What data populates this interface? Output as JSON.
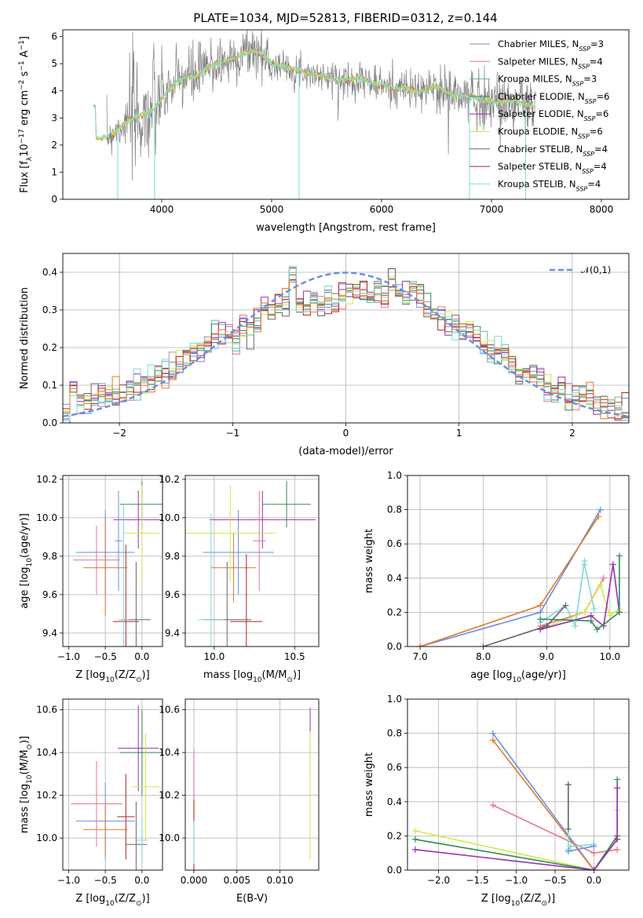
{
  "figure_title": "PLATE=1034, MJD=52813, FIBERID=0312, z=0.144",
  "models": [
    {
      "name": "Chabrier MILES",
      "nssp": "3",
      "color": "#6A8FE0"
    },
    {
      "name": "Salpeter MILES",
      "nssp": "4",
      "color": "#E8748A"
    },
    {
      "name": "Kroupa MILES",
      "nssp": "3",
      "color": "#5DBFA0"
    },
    {
      "name": "Chabrier ELODIE",
      "nssp": "6",
      "color": "#2E8B57"
    },
    {
      "name": "Salpeter ELODIE",
      "nssp": "6",
      "color": "#9A2FB0"
    },
    {
      "name": "Kroupa ELODIE",
      "nssp": "6",
      "color": "#D4E84A"
    },
    {
      "name": "Chabrier STELIB",
      "nssp": "4",
      "color": "#666666"
    },
    {
      "name": "Salpeter STELIB",
      "nssp": "4",
      "color": "#B22222"
    },
    {
      "name": "Kroupa STELIB",
      "nssp": "4",
      "color": "#7FD8D8"
    }
  ],
  "extra_colors": {
    "orange": "#E07A2A",
    "lime": "#C8E65A",
    "gray": "#808080",
    "normal": "#6A8FE0"
  },
  "chart_data": [
    {
      "id": "spectrum",
      "type": "line",
      "title": "PLATE=1034, MJD=52813, FIBERID=0312, z=0.144",
      "xlabel": "wavelength [Angstrom, rest frame]",
      "ylabel_parts": [
        "Flux [f",
        "λ",
        "10",
        "−17",
        " erg cm",
        "−2",
        " s",
        "−1",
        " A",
        "−1",
        "]"
      ],
      "xlim": [
        3100,
        8250
      ],
      "ylim": [
        0,
        6.25
      ],
      "xticks": [
        4000,
        5000,
        6000,
        7000,
        8000
      ],
      "yticks": [
        0,
        1,
        2,
        3,
        4,
        5,
        6
      ],
      "legend": "top-right",
      "continuum": {
        "x": [
          3400,
          3500,
          3600,
          3700,
          3800,
          3900,
          4000,
          4100,
          4200,
          4300,
          4400,
          4500,
          4600,
          4700,
          4800,
          4900,
          5000,
          5100,
          5200,
          5300,
          5400,
          5500,
          5600,
          5700,
          5800,
          5900,
          6000,
          6100,
          6200,
          6300,
          6400,
          6500,
          6600,
          6700,
          6800,
          6900,
          7000,
          7100,
          7200,
          7300,
          7400
        ],
        "y": [
          2.2,
          2.3,
          2.6,
          2.9,
          3.1,
          3.2,
          3.7,
          4.2,
          4.5,
          4.5,
          4.8,
          5.0,
          5.1,
          5.3,
          5.5,
          5.4,
          5.0,
          4.9,
          4.8,
          4.7,
          4.6,
          4.5,
          4.4,
          4.4,
          4.5,
          4.3,
          4.2,
          4.1,
          4.1,
          4.0,
          4.0,
          4.2,
          3.9,
          3.8,
          3.8,
          3.7,
          3.6,
          3.6,
          3.6,
          3.5,
          3.4
        ]
      },
      "noisy_data": {
        "x_range": [
          3500,
          7400
        ],
        "sigma": [
          [
            3500,
            3000,
            1.6
          ],
          [
            3700,
            3950,
            1.1
          ],
          [
            3950,
            4500,
            0.6
          ],
          [
            4500,
            5000,
            0.5
          ],
          [
            5000,
            5500,
            0.25
          ],
          [
            5500,
            6500,
            0.35
          ],
          [
            6500,
            7400,
            0.55
          ]
        ]
      },
      "dips": [
        {
          "x": 3600,
          "y": 0.0
        },
        {
          "x": 3935,
          "y": 0.0
        },
        {
          "x": 5250,
          "y": 0.0
        },
        {
          "x": 6800,
          "y": 0.0
        },
        {
          "x": 7310,
          "y": 0.0
        }
      ]
    },
    {
      "id": "residuals",
      "type": "histogram",
      "xlabel": "(data-model)/error",
      "ylabel": "Normed distribution",
      "xlim": [
        -2.5,
        2.5
      ],
      "ylim": [
        0,
        0.45
      ],
      "xticks": [
        -2,
        -1,
        0,
        1,
        2
      ],
      "yticks": [
        0.0,
        0.1,
        0.2,
        0.3,
        0.4
      ],
      "bin_width": 0.1,
      "legend_label": "𝒩(0,1)",
      "legend": "top-right",
      "base_hist": [
        0.03,
        0.09,
        0.06,
        0.06,
        0.065,
        0.07,
        0.07,
        0.07,
        0.085,
        0.09,
        0.095,
        0.1,
        0.11,
        0.13,
        0.145,
        0.14,
        0.16,
        0.17,
        0.18,
        0.2,
        0.21,
        0.23,
        0.25,
        0.24,
        0.22,
        0.26,
        0.25,
        0.27,
        0.3,
        0.3,
        0.32,
        0.31,
        0.4,
        0.32,
        0.31,
        0.33,
        0.32,
        0.33,
        0.31,
        0.34,
        0.34,
        0.36,
        0.35,
        0.33,
        0.35,
        0.34,
        0.38,
        0.34,
        0.34,
        0.36,
        0.33,
        0.31,
        0.29,
        0.29,
        0.27,
        0.26,
        0.24,
        0.25,
        0.22,
        0.21,
        0.2,
        0.19,
        0.17,
        0.15,
        0.14,
        0.14,
        0.13,
        0.12,
        0.09,
        0.08,
        0.09,
        0.08,
        0.07,
        0.065,
        0.07,
        0.06,
        0.05,
        0.04,
        0.035,
        0.03
      ]
    },
    {
      "id": "age-vs-Z",
      "type": "scatter",
      "xlabel_parts": [
        "Z [log",
        "10",
        "(Z/Z",
        "⊙",
        ")]"
      ],
      "ylabel_parts": [
        "age  [log",
        "10",
        "(age/yr)]"
      ],
      "xlim": [
        -1.08,
        0.28
      ],
      "ylim": [
        9.33,
        10.22
      ],
      "xticks": [
        -1.0,
        -0.5,
        0.0
      ],
      "yticks": [
        9.4,
        9.6,
        9.8,
        10.0,
        10.2
      ],
      "points": [
        {
          "x": -0.5,
          "y": 9.82,
          "xerr": 0.4,
          "yerr": 0.22,
          "c": "#6A8FE0"
        },
        {
          "x": -0.62,
          "y": 9.78,
          "xerr": 0.32,
          "yerr": 0.18,
          "c": "#E8748A"
        },
        {
          "x": -0.5,
          "y": 9.74,
          "xerr": 0.3,
          "yerr": 0.25,
          "c": "#E07A2A"
        },
        {
          "x": 0.0,
          "y": 10.07,
          "xerr": 0.3,
          "yerr": 0.12,
          "c": "#2E8B57"
        },
        {
          "x": -0.05,
          "y": 9.99,
          "xerr": 0.34,
          "yerr": 0.15,
          "c": "#9A2FB0"
        },
        {
          "x": 0.0,
          "y": 9.92,
          "xerr": 0.24,
          "yerr": 0.25,
          "c": "#D4E84A"
        },
        {
          "x": -0.22,
          "y": 9.46,
          "xerr": 0.18,
          "yerr": 0.4,
          "c": "#B22222"
        },
        {
          "x": -0.08,
          "y": 9.47,
          "xerr": 0.2,
          "yerr": 0.3,
          "c": "#666666"
        },
        {
          "x": -0.25,
          "y": 9.47,
          "xerr": 0.07,
          "yerr": 0.6,
          "c": "#7FD8D8"
        },
        {
          "x": -0.32,
          "y": 9.88,
          "xerr": 0.05,
          "yerr": 0.26,
          "c": "#6A8FE0"
        }
      ]
    },
    {
      "id": "age-vs-mass",
      "type": "scatter",
      "xlabel_parts": [
        "mass [log",
        "10",
        "(M/M",
        "⊙",
        ")]"
      ],
      "ylabel_parts": [],
      "xlim": [
        9.82,
        10.65
      ],
      "ylim": [
        9.33,
        10.22
      ],
      "xticks": [
        10.0,
        10.5
      ],
      "yticks": [
        9.4,
        9.6,
        9.8,
        10.0,
        10.2
      ],
      "points": [
        {
          "x": 10.15,
          "y": 9.82,
          "xerr": 0.22,
          "yerr": 0.22,
          "c": "#6A8FE0"
        },
        {
          "x": 10.12,
          "y": 9.74,
          "xerr": 0.14,
          "yerr": 0.18,
          "c": "#E07A2A"
        },
        {
          "x": 10.45,
          "y": 10.07,
          "xerr": 0.15,
          "yerr": 0.12,
          "c": "#2E8B57"
        },
        {
          "x": 10.3,
          "y": 9.99,
          "xerr": 0.33,
          "yerr": 0.15,
          "c": "#9A2FB0"
        },
        {
          "x": 10.1,
          "y": 9.92,
          "xerr": 0.28,
          "yerr": 0.25,
          "c": "#D4E84A"
        },
        {
          "x": 10.2,
          "y": 9.46,
          "xerr": 0.1,
          "yerr": 0.35,
          "c": "#B22222"
        },
        {
          "x": 10.08,
          "y": 9.47,
          "xerr": 0.15,
          "yerr": 0.3,
          "c": "#666666"
        },
        {
          "x": 9.98,
          "y": 9.47,
          "xerr": 0.08,
          "yerr": 0.55,
          "c": "#7FD8D8"
        },
        {
          "x": 10.28,
          "y": 9.88,
          "xerr": 0.04,
          "yerr": 0.26,
          "c": "#E8748A"
        }
      ]
    },
    {
      "id": "mass-weight-vs-age",
      "type": "line",
      "xlabel_parts": [
        "age  [log",
        "10",
        "(age/yr)]"
      ],
      "ylabel": "mass weight",
      "xlim": [
        6.8,
        10.3
      ],
      "ylim": [
        0,
        1.0
      ],
      "xticks": [
        7,
        8,
        9,
        10
      ],
      "yticks": [
        0.0,
        0.2,
        0.4,
        0.6,
        0.8,
        1.0
      ],
      "series": [
        {
          "c": "#6A8FE0",
          "x": [
            7.0,
            8.9,
            9.85
          ],
          "y": [
            0.0,
            0.2,
            0.8
          ]
        },
        {
          "c": "#E07A2A",
          "x": [
            7.0,
            8.9,
            9.82
          ],
          "y": [
            0.0,
            0.24,
            0.76
          ]
        },
        {
          "c": "#7FD8D8",
          "x": [
            8.9,
            9.3,
            9.45,
            9.6,
            9.6,
            9.75
          ],
          "y": [
            0.14,
            0.24,
            0.12,
            0.5,
            0.48,
            0.22
          ]
        },
        {
          "c": "#E8748A",
          "x": [
            8.9,
            9.6,
            9.9
          ],
          "y": [
            0.12,
            0.2,
            0.4
          ]
        },
        {
          "c": "#D4E84A",
          "x": [
            8.9,
            9.6,
            9.85,
            10.0,
            10.15
          ],
          "y": [
            0.1,
            0.2,
            0.36,
            0.18,
            0.22
          ]
        },
        {
          "c": "#9A2FB0",
          "x": [
            8.9,
            9.7,
            9.9,
            10.05,
            10.15
          ],
          "y": [
            0.1,
            0.18,
            0.12,
            0.48,
            0.2
          ]
        },
        {
          "c": "#2E8B57",
          "x": [
            8.9,
            9.7,
            9.8,
            10.15,
            10.15
          ],
          "y": [
            0.16,
            0.15,
            0.1,
            0.2,
            0.53
          ]
        },
        {
          "c": "#666666",
          "x": [
            8.0,
            9.0,
            9.3
          ],
          "y": [
            0.0,
            0.12,
            0.24
          ]
        }
      ]
    },
    {
      "id": "mass-vs-Z",
      "type": "scatter",
      "xlabel_parts": [
        "Z [log",
        "10",
        "(Z/Z",
        "⊙",
        ")]"
      ],
      "ylabel_parts": [
        "mass [log",
        "10",
        "(M/M",
        "⊙",
        ")]"
      ],
      "xlim": [
        -1.08,
        0.28
      ],
      "ylim": [
        9.85,
        10.65
      ],
      "xticks": [
        -1.0,
        -0.5,
        0.0
      ],
      "yticks": [
        10.0,
        10.2,
        10.4,
        10.6
      ],
      "points": [
        {
          "x": -0.5,
          "y": 10.08,
          "xerr": 0.4,
          "yerr": 0.18,
          "c": "#6A8FE0"
        },
        {
          "x": -0.62,
          "y": 10.16,
          "xerr": 0.35,
          "yerr": 0.2,
          "c": "#E8748A"
        },
        {
          "x": -0.5,
          "y": 10.04,
          "xerr": 0.3,
          "yerr": 0.12,
          "c": "#E07A2A"
        },
        {
          "x": 0.0,
          "y": 10.4,
          "xerr": 0.3,
          "yerr": 0.2,
          "c": "#2E8B57"
        },
        {
          "x": -0.05,
          "y": 10.42,
          "xerr": 0.28,
          "yerr": 0.2,
          "c": "#9A2FB0"
        },
        {
          "x": 0.05,
          "y": 10.24,
          "xerr": 0.2,
          "yerr": 0.25,
          "c": "#D4E84A"
        },
        {
          "x": -0.22,
          "y": 10.1,
          "xerr": 0.12,
          "yerr": 0.2,
          "c": "#B22222"
        },
        {
          "x": -0.08,
          "y": 9.97,
          "xerr": 0.15,
          "yerr": 0.2,
          "c": "#666666"
        },
        {
          "x": 0.0,
          "y": 9.99,
          "xerr": 0.08,
          "yerr": 0.1,
          "c": "#7FD8D8"
        }
      ]
    },
    {
      "id": "mass-vs-ebv",
      "type": "scatter",
      "xlabel": "E(B-V)",
      "ylabel_parts": [],
      "xlim": [
        -0.001,
        0.0145
      ],
      "ylim": [
        9.85,
        10.65
      ],
      "xticks": [
        0.0,
        0.005,
        0.01
      ],
      "xtick_labels": [
        "0.000",
        "0.005",
        "0.010"
      ],
      "yticks": [
        10.0,
        10.2,
        10.4,
        10.6
      ],
      "points": [
        {
          "x": 0.0,
          "y": 10.05,
          "xerr": 0.0,
          "yerr": 0.2,
          "c": "#6A8FE0"
        },
        {
          "x": 0.0,
          "y": 10.1,
          "xerr": 0.0,
          "yerr": 0.3,
          "c": "#B22222"
        },
        {
          "x": 0.0,
          "y": 10.3,
          "xerr": 0.0,
          "yerr": 0.12,
          "c": "#E8748A"
        },
        {
          "x": 0.0,
          "y": 9.98,
          "xerr": 0.0,
          "yerr": 0.1,
          "c": "#7FD8D8"
        },
        {
          "x": 0.0135,
          "y": 10.45,
          "xerr": 0.0,
          "yerr": 0.16,
          "c": "#9A2FB0"
        },
        {
          "x": 0.0135,
          "y": 10.2,
          "xerr": 0.0,
          "yerr": 0.3,
          "c": "#D4E84A"
        }
      ]
    },
    {
      "id": "mass-weight-vs-Z",
      "type": "line",
      "xlabel_parts": [
        "Z [log",
        "10",
        "(Z/Z",
        "⊙",
        ")]"
      ],
      "ylabel": "mass weight",
      "xlim": [
        -2.4,
        0.45
      ],
      "ylim": [
        0,
        1.0
      ],
      "xticks": [
        -2.0,
        -1.5,
        -1.0,
        -0.5,
        0.0
      ],
      "yticks": [
        0.0,
        0.2,
        0.4,
        0.6,
        0.8,
        1.0
      ],
      "series": [
        {
          "c": "#6A8FE0",
          "x": [
            -1.3,
            0.0
          ],
          "y": [
            0.8,
            0.0
          ]
        },
        {
          "c": "#E07A2A",
          "x": [
            -1.3,
            0.0,
            0.3
          ],
          "y": [
            0.76,
            0.0,
            0.2
          ]
        },
        {
          "c": "#E8748A",
          "x": [
            -1.3,
            0.0,
            0.3
          ],
          "y": [
            0.38,
            0.1,
            0.12
          ]
        },
        {
          "c": "#7FD8D8",
          "x": [
            -0.33,
            -0.33,
            -0.3,
            0.0
          ],
          "y": [
            0.5,
            0.12,
            0.14,
            0.15
          ]
        },
        {
          "c": "#666666",
          "x": [
            -0.33,
            -0.33
          ],
          "y": [
            0.5,
            0.24
          ]
        },
        {
          "c": "#D4E84A",
          "x": [
            -2.3,
            0.0,
            0.3,
            0.3
          ],
          "y": [
            0.23,
            0.0,
            0.18,
            0.35
          ]
        },
        {
          "c": "#2E8B57",
          "x": [
            -2.3,
            0.0,
            0.3,
            0.3
          ],
          "y": [
            0.18,
            0.0,
            0.2,
            0.53
          ]
        },
        {
          "c": "#9A2FB0",
          "x": [
            -2.3,
            0.0,
            0.3,
            0.3
          ],
          "y": [
            0.12,
            0.0,
            0.18,
            0.48
          ]
        },
        {
          "c": "#6A8FE0",
          "x": [
            -0.33,
            0.0
          ],
          "y": [
            0.11,
            0.14
          ]
        }
      ]
    }
  ]
}
